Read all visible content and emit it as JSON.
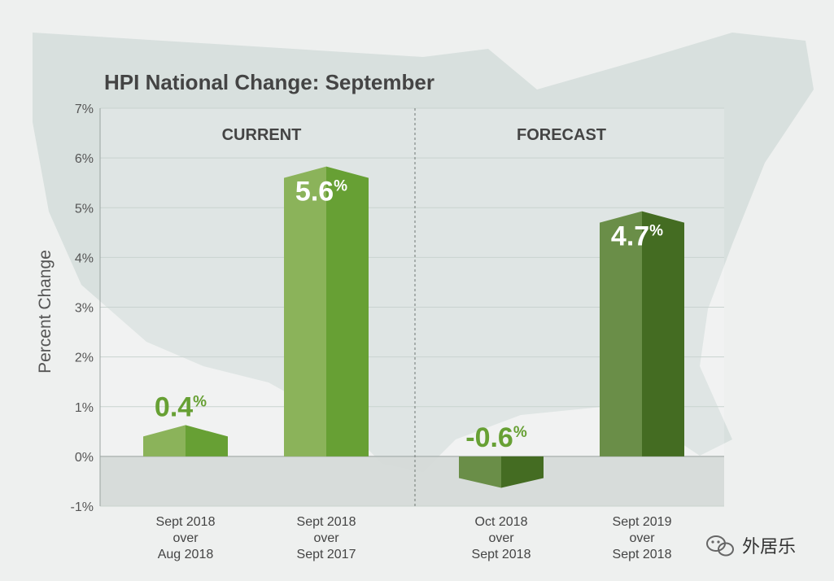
{
  "chart_data": {
    "type": "bar",
    "title": "HPI National Change: September",
    "ylabel": "Percent Change",
    "ylim": [
      -1,
      7
    ],
    "yticks": [
      "7%",
      "6%",
      "5%",
      "4%",
      "3%",
      "2%",
      "1%",
      "0%",
      "-1%"
    ],
    "ytick_values": [
      7,
      6,
      5,
      4,
      3,
      2,
      1,
      0,
      -1
    ],
    "grid": true,
    "sections": [
      {
        "label": "CURRENT",
        "categories": [
          0,
          1
        ]
      },
      {
        "label": "FORECAST",
        "categories": [
          2,
          3
        ]
      }
    ],
    "categories": [
      [
        "Sept 2018",
        "over",
        "Aug 2018"
      ],
      [
        "Sept 2018",
        "over",
        "Sept 2017"
      ],
      [
        "Oct 2018",
        "over",
        "Sept 2018"
      ],
      [
        "Sept 2019",
        "over",
        "Sept 2018"
      ]
    ],
    "values": [
      0.4,
      5.6,
      -0.6,
      4.7
    ],
    "value_labels": [
      "0.4",
      "5.6",
      "-0.6",
      "4.7"
    ],
    "value_unit": "%",
    "colors": {
      "current_light": "#8bb35a",
      "current_dark": "#67a034",
      "forecast_light": "#6a8e48",
      "forecast_dark": "#446c22",
      "label_light": "#ffffff",
      "label_green": "#67a034",
      "text": "#444444",
      "grid": "#c9d3cf",
      "map": "#d3ddda"
    }
  },
  "watermark": {
    "icon": "wechat-icon",
    "text": "外居乐"
  }
}
